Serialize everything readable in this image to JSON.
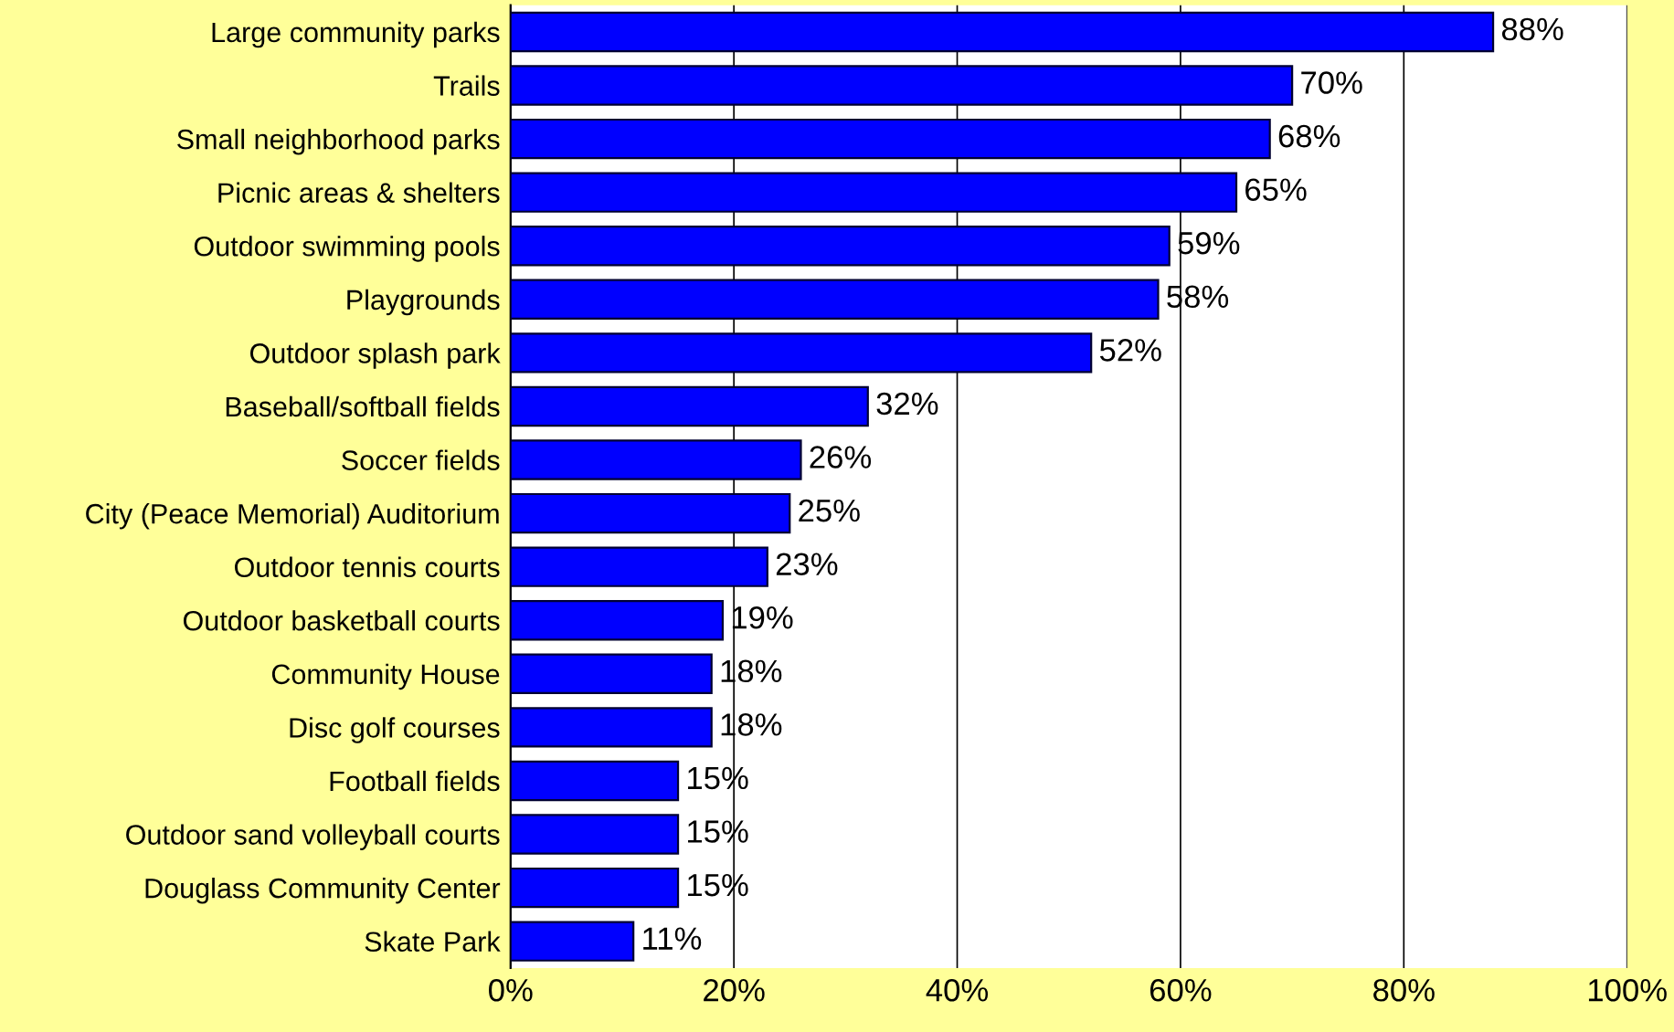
{
  "chart_data": {
    "type": "bar",
    "orientation": "horizontal",
    "categories": [
      "Large community parks",
      "Trails",
      "Small neighborhood parks",
      "Picnic areas & shelters",
      "Outdoor swimming pools",
      "Playgrounds",
      "Outdoor splash park",
      "Baseball/softball fields",
      "Soccer fields",
      "City (Peace Memorial) Auditorium",
      "Outdoor tennis courts",
      "Outdoor basketball courts",
      "Community House",
      "Disc golf courses",
      "Football fields",
      "Outdoor sand volleyball courts",
      "Douglass Community Center",
      "Skate Park"
    ],
    "values": [
      88,
      70,
      68,
      65,
      59,
      58,
      52,
      32,
      26,
      25,
      23,
      19,
      18,
      18,
      15,
      15,
      15,
      11
    ],
    "value_labels": [
      "88%",
      "70%",
      "68%",
      "65%",
      "59%",
      "58%",
      "52%",
      "32%",
      "26%",
      "25%",
      "23%",
      "19%",
      "18%",
      "18%",
      "15%",
      "15%",
      "15%",
      "11%"
    ],
    "color": "#0000ff",
    "xlim": [
      0,
      100
    ],
    "xticks": [
      {
        "value": 0,
        "label": "0%"
      },
      {
        "value": 20,
        "label": "20%"
      },
      {
        "value": 40,
        "label": "40%"
      },
      {
        "value": 60,
        "label": "60%"
      },
      {
        "value": 80,
        "label": "80%"
      },
      {
        "value": 100,
        "label": "100%"
      }
    ],
    "grid": "x",
    "legend": false
  }
}
